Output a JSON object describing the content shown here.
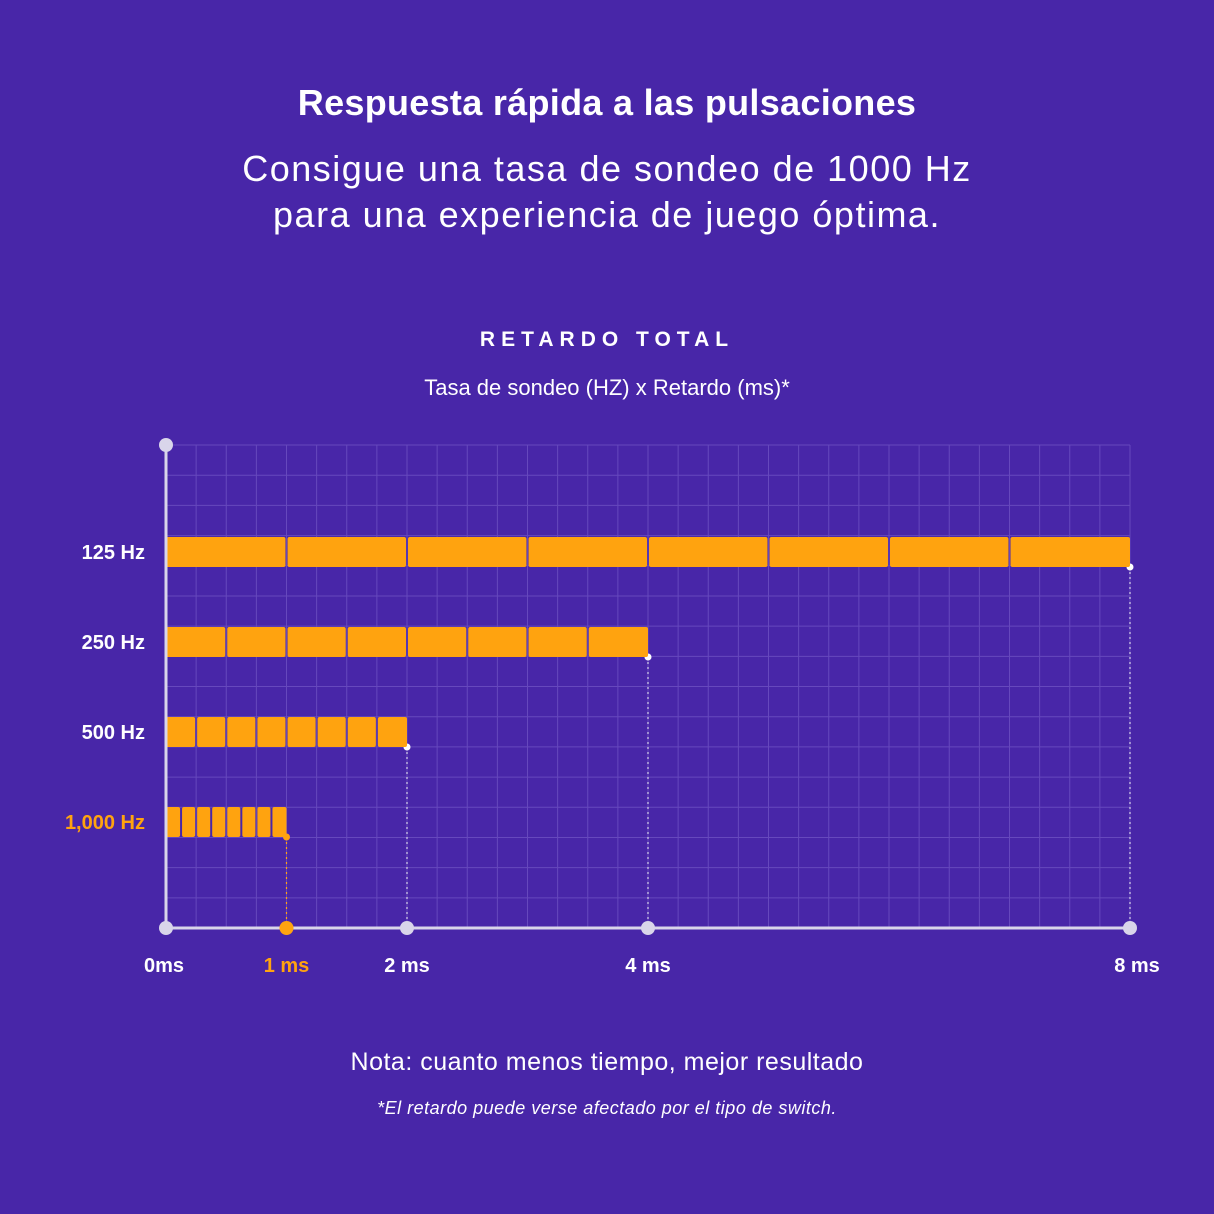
{
  "header": {
    "headline": "Respuesta rápida a las pulsaciones",
    "subheadline_line1": "Consigue una tasa de sondeo de 1000 Hz",
    "subheadline_line2": "para una experiencia de juego óptima."
  },
  "chart_data": {
    "type": "bar",
    "orientation": "horizontal",
    "title": "RETARDO TOTAL",
    "subtitle": "Tasa de sondeo (HZ) x Retardo (ms)*",
    "categories": [
      "125 Hz",
      "250 Hz",
      "500 Hz",
      "1,000 Hz"
    ],
    "values": [
      8,
      4,
      2,
      1
    ],
    "segments_per_bar": 8,
    "x_unit": "ms",
    "xlim": [
      0,
      8
    ],
    "x_ticks": [
      {
        "value": 0,
        "label": "0ms",
        "highlight": false
      },
      {
        "value": 1,
        "label": "1 ms",
        "highlight": true
      },
      {
        "value": 2,
        "label": "2 ms",
        "highlight": false
      },
      {
        "value": 4,
        "label": "4 ms",
        "highlight": false
      },
      {
        "value": 8,
        "label": "8 ms",
        "highlight": false
      }
    ],
    "highlight_category": "1,000 Hz",
    "grid": true,
    "colors": {
      "background": "#4826a8",
      "bar": "#ffa30f",
      "highlight": "#ffa30f",
      "axis": "#d9d5ea",
      "grid": "#6648bd",
      "text": "#ffffff"
    }
  },
  "footer": {
    "note": "Nota: cuanto menos tiempo, mejor resultado",
    "footnote": "*El retardo puede verse afectado por el tipo de switch."
  }
}
